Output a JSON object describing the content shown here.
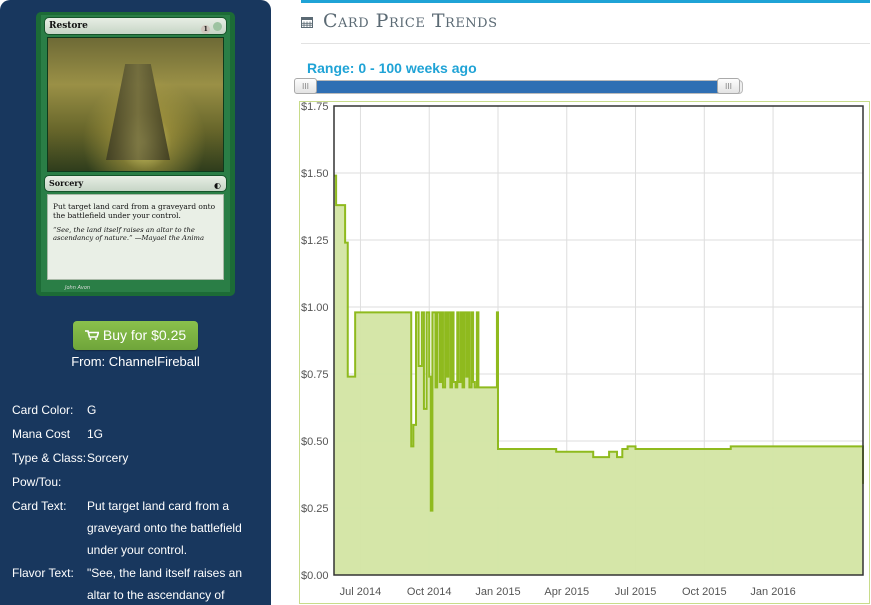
{
  "card": {
    "name": "Restore",
    "cost": "1G",
    "type": "Sorcery",
    "rules_text": "Put target land card from a graveyard onto the battlefield under your control.",
    "flavor_text": "“See, the land itself raises an altar to the ascendancy of nature.” —Mayael the Anima",
    "artist": "John Avon"
  },
  "buy": {
    "label": "Buy for $0.25",
    "from": "From: ChannelFireball",
    "icon": "cart-icon"
  },
  "details": [
    {
      "label": "Card Color:",
      "value": "G"
    },
    {
      "label": "Mana Cost",
      "value": "1G"
    },
    {
      "label": "Type & Class:",
      "value": "Sorcery"
    },
    {
      "label": "Pow/Tou:",
      "value": ""
    },
    {
      "label": "Card Text:",
      "value": "Put target land card from a graveyard onto the battlefield under your control."
    },
    {
      "label": "Flavor Text:",
      "value": "\"See, the land itself raises an altar to the ascendancy of"
    }
  ],
  "section": {
    "title": "Card Price Trends",
    "icon": "calendar-icon"
  },
  "range": {
    "label": "Range: 0 - 100 weeks ago",
    "from_weeks": 0,
    "to_weeks": 100,
    "handle_glyph": "III"
  },
  "colors": {
    "accent": "#1fa3d6",
    "series": "#8fba1e",
    "fill": "#d3e5a3",
    "panel": "#18375e",
    "buy": "#78af42"
  },
  "chart_data": {
    "type": "area",
    "x_ticks": [
      {
        "label": "Jul 2014",
        "week": 5
      },
      {
        "label": "Oct 2014",
        "week": 18
      },
      {
        "label": "Jan 2015",
        "week": 31
      },
      {
        "label": "Apr 2015",
        "week": 44
      },
      {
        "label": "Jul 2015",
        "week": 57
      },
      {
        "label": "Oct 2015",
        "week": 70
      },
      {
        "label": "Jan 2016",
        "week": 83
      }
    ],
    "y_ticks": [
      "$0.00",
      "$0.25",
      "$0.50",
      "$0.75",
      "$1.00",
      "$1.25",
      "$1.50",
      "$1.75"
    ],
    "ylim": [
      0,
      1.75
    ],
    "xlim": [
      0,
      100
    ],
    "grid": true,
    "series": [
      {
        "x": [
          0,
          0.4,
          0.8,
          1.9,
          2.1,
          2.4,
          2.6,
          3.8,
          4.0,
          6.2,
          6.5,
          14.4,
          14.6,
          15.0,
          15.5,
          16.0,
          16.6,
          17.0,
          17.5,
          18.0,
          18.3,
          18.6,
          19.2,
          19.5,
          20.0,
          20.3,
          20.6,
          21.0,
          21.3,
          21.6,
          22.0,
          22.3,
          22.6,
          23.0,
          23.3,
          23.6,
          24.0,
          24.3,
          24.6,
          25.0,
          25.3,
          25.6,
          26.0,
          26.3,
          26.6,
          27.0,
          27.3,
          27.6,
          28.0,
          28.3,
          28.6,
          29.0,
          30.5,
          30.8,
          31.0,
          33.0,
          36.0,
          39.0,
          42.0,
          48.0,
          49.0,
          52.0,
          53.5,
          54.5,
          55.5,
          57.0,
          60.0,
          74.0,
          75.0,
          99.5,
          100
        ],
        "values": [
          1.49,
          1.38,
          1.38,
          1.38,
          1.24,
          1.24,
          0.74,
          0.74,
          0.98,
          0.98,
          0.98,
          0.98,
          0.48,
          0.56,
          0.98,
          0.78,
          0.98,
          0.62,
          0.98,
          0.74,
          0.24,
          0.98,
          0.7,
          0.98,
          0.72,
          0.98,
          0.7,
          0.98,
          0.74,
          0.98,
          0.7,
          0.98,
          0.72,
          0.7,
          0.98,
          0.72,
          0.98,
          0.7,
          0.98,
          0.74,
          0.98,
          0.7,
          0.98,
          0.72,
          0.7,
          0.98,
          0.7,
          0.7,
          0.7,
          0.7,
          0.7,
          0.7,
          0.7,
          0.98,
          0.47,
          0.47,
          0.47,
          0.47,
          0.46,
          0.46,
          0.44,
          0.46,
          0.44,
          0.47,
          0.48,
          0.47,
          0.47,
          0.47,
          0.48,
          0.48,
          0.34
        ]
      }
    ]
  }
}
